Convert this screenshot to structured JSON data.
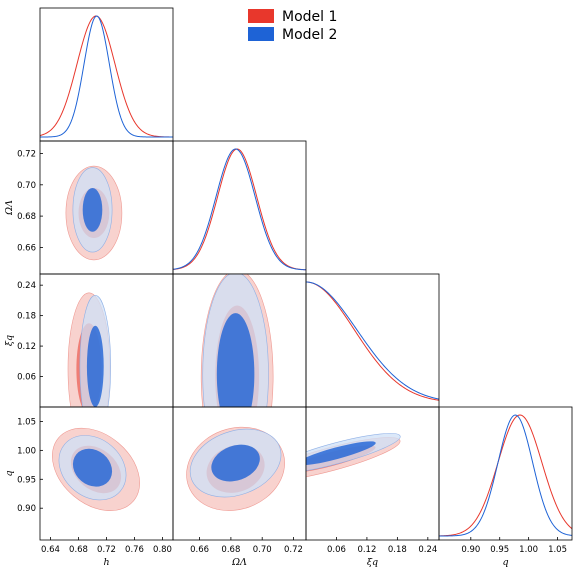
{
  "chart_data": {
    "type": "corner",
    "parameters": [
      "h",
      "Ω_Λ",
      "ξ_q",
      "q"
    ],
    "axis_labels": [
      "h",
      "ΩΛ",
      "ξq",
      "q"
    ],
    "ranges": [
      [
        0.625,
        0.815
      ],
      [
        0.643,
        0.728
      ],
      [
        0.0,
        0.262
      ],
      [
        0.845,
        1.075
      ]
    ],
    "ticks": [
      [
        "0.64",
        "0.68",
        "0.72",
        "0.76",
        "0.80"
      ],
      [
        "0.66",
        "0.68",
        "0.70",
        "0.72"
      ],
      [
        "0.06",
        "0.12",
        "0.18",
        "0.24"
      ],
      [
        "0.90",
        "0.95",
        "1.00",
        "1.05"
      ]
    ],
    "legend": {
      "placement": "top-center",
      "entries": [
        "Model 1",
        "Model 2"
      ]
    },
    "colors": {
      "model1": "#e8372c",
      "model1_light": "#f6c3bd",
      "model1_mid": "#ef9a93",
      "model2": "#1e63d6",
      "model2_light": "#cfe0f7",
      "model2_mid": "#8fb0e6"
    },
    "series": [
      {
        "name": "Model 1",
        "marginals": [
          {
            "mean": 0.705,
            "sigma": 0.027
          },
          {
            "mean": 0.684,
            "sigma": 0.0125
          },
          {
            "mode": 0.0,
            "sigma": 0.095,
            "half": true
          },
          {
            "mean": 0.985,
            "sigma": 0.038
          }
        ],
        "contours": [
          {
            "x": 0,
            "y": 1,
            "center": [
              0.702,
              0.682
            ],
            "rx68": 0.022,
            "ry68": 0.016,
            "rx95": 0.04,
            "ry95": 0.03
          },
          {
            "x": 0,
            "y": 2,
            "center": [
              0.695,
              0.075
            ],
            "rx68": 0.018,
            "ry68": 0.09,
            "rx95": 0.03,
            "ry95": 0.15
          },
          {
            "x": 0,
            "y": 3,
            "center": [
              0.705,
              0.967
            ],
            "rx68": 0.04,
            "ry68": 0.035,
            "rx95": 0.07,
            "ry95": 0.06
          },
          {
            "x": 1,
            "y": 2,
            "center": [
              0.684,
              0.06
            ],
            "rx68": 0.014,
            "ry68": 0.14,
            "rx95": 0.023,
            "ry95": 0.21
          },
          {
            "x": 1,
            "y": 3,
            "center": [
              0.683,
              0.968
            ],
            "rx68": 0.019,
            "ry68": 0.04,
            "rx95": 0.032,
            "ry95": 0.07
          },
          {
            "x": 2,
            "y": 3,
            "center": [
              0.05,
              0.985
            ],
            "rx68": 0.09,
            "ry68": 0.012,
            "rx95": 0.14,
            "ry95": 0.02
          }
        ]
      },
      {
        "name": "Model 2",
        "marginals": [
          {
            "mean": 0.706,
            "sigma": 0.018
          },
          {
            "mean": 0.683,
            "sigma": 0.0125
          },
          {
            "mode": 0.0,
            "sigma": 0.1,
            "half": true
          },
          {
            "mean": 0.977,
            "sigma": 0.03
          }
        ],
        "contours": [
          {
            "x": 0,
            "y": 1,
            "center": [
              0.7,
              0.684
            ],
            "rx68": 0.014,
            "ry68": 0.014,
            "rx95": 0.028,
            "ry95": 0.027
          },
          {
            "x": 0,
            "y": 2,
            "center": [
              0.704,
              0.08
            ],
            "rx68": 0.012,
            "ry68": 0.08,
            "rx95": 0.022,
            "ry95": 0.14
          },
          {
            "x": 0,
            "y": 3,
            "center": [
              0.7,
              0.97
            ],
            "rx68": 0.03,
            "ry68": 0.03,
            "rx95": 0.052,
            "ry95": 0.05
          },
          {
            "x": 1,
            "y": 2,
            "center": [
              0.683,
              0.065
            ],
            "rx68": 0.012,
            "ry68": 0.12,
            "rx95": 0.021,
            "ry95": 0.2
          },
          {
            "x": 1,
            "y": 3,
            "center": [
              0.683,
              0.978
            ],
            "rx68": 0.016,
            "ry68": 0.03,
            "rx95": 0.03,
            "ry95": 0.055
          },
          {
            "x": 2,
            "y": 3,
            "center": [
              0.06,
              0.995
            ],
            "rx68": 0.08,
            "ry68": 0.01,
            "rx95": 0.13,
            "ry95": 0.018
          }
        ]
      }
    ]
  }
}
